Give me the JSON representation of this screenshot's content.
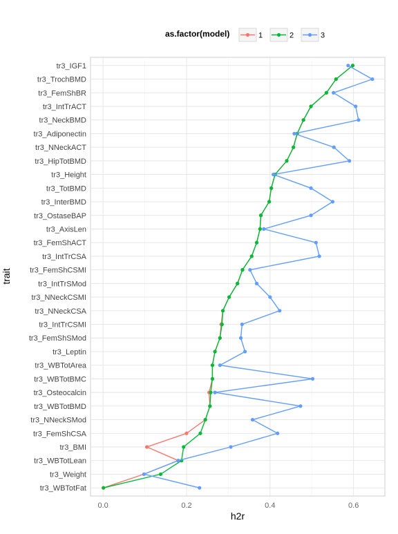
{
  "chart_data": {
    "type": "line",
    "title": "",
    "xlabel": "h2r",
    "ylabel": "trait",
    "xlim": [
      -0.03,
      0.675
    ],
    "xticks": [
      0.0,
      0.2,
      0.4,
      0.6
    ],
    "xtick_labels": [
      "0.0",
      "0.2",
      "0.4",
      "0.6"
    ],
    "grid": true,
    "legend_title": "as.factor(model)",
    "legend_position": "top",
    "categories": [
      "tr3_IGF1",
      "tr3_TrochBMD",
      "tr3_FemShBR",
      "tr3_IntTrACT",
      "tr3_NeckBMD",
      "tr3_Adiponectin",
      "tr3_NNeckACT",
      "tr3_HipTotBMD",
      "tr3_Height",
      "tr3_TotBMD",
      "tr3_InterBMD",
      "tr3_OstaseBAP",
      "tr3_AxisLen",
      "tr3_FemShACT",
      "tr3_IntTrCSA",
      "tr3_FemShCSMI",
      "tr3_IntTrSMod",
      "tr3_NNeckCSMI",
      "tr3_NNeckCSA",
      "tr3_IntTrCSMI",
      "tr3_FemShSMod",
      "tr3_Leptin",
      "tr3_WBTotArea",
      "tr3_WBTotBMC",
      "tr3_Osteocalcin",
      "tr3_WBTotBMD",
      "tr3_NNeckSMod",
      "tr3_FemShCSA",
      "tr3_BMI",
      "tr3_WBTotLean",
      "tr3_Weight",
      "tr3_WBTotFat"
    ],
    "series": [
      {
        "name": "1",
        "color": "#F8766D",
        "values": [
          0.598,
          0.558,
          0.535,
          0.498,
          0.48,
          0.465,
          0.456,
          0.44,
          0.412,
          0.403,
          0.398,
          0.378,
          0.376,
          0.368,
          0.356,
          0.334,
          0.322,
          0.302,
          0.287,
          0.283,
          0.28,
          0.268,
          0.262,
          0.262,
          0.254,
          0.256,
          0.245,
          0.2,
          0.105,
          0.18,
          0.098,
          0.001
        ]
      },
      {
        "name": "2",
        "color": "#00BA38",
        "values": [
          0.598,
          0.558,
          0.535,
          0.498,
          0.48,
          0.465,
          0.456,
          0.44,
          0.412,
          0.403,
          0.398,
          0.378,
          0.376,
          0.368,
          0.356,
          0.334,
          0.322,
          0.302,
          0.287,
          0.285,
          0.28,
          0.268,
          0.262,
          0.262,
          0.258,
          0.256,
          0.245,
          0.233,
          0.193,
          0.188,
          0.138,
          0.001
        ]
      },
      {
        "name": "3",
        "color": "#619CFF",
        "values": [
          0.587,
          0.645,
          0.552,
          0.605,
          0.612,
          0.458,
          0.553,
          0.59,
          0.408,
          0.498,
          0.55,
          0.498,
          0.385,
          0.51,
          0.518,
          0.352,
          0.368,
          0.4,
          0.423,
          0.333,
          0.33,
          0.34,
          0.28,
          0.502,
          0.268,
          0.473,
          0.358,
          0.418,
          0.306,
          0.18,
          0.098,
          0.231
        ]
      }
    ]
  }
}
